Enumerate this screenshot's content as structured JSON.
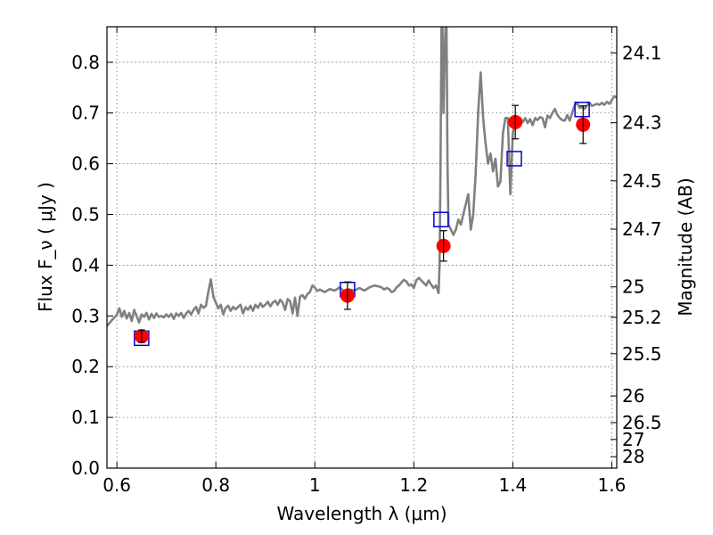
{
  "chart_data": {
    "type": "line",
    "xlabel": "Wavelength  λ (μm)",
    "ylabel": "Flux  F_ν  ( μJy )",
    "y2label": "Magnitude (AB)",
    "xlim": [
      0.58,
      1.61
    ],
    "ylim": [
      0.0,
      0.87
    ],
    "x_ticks": [
      0.6,
      0.8,
      1.0,
      1.2,
      1.4,
      1.6
    ],
    "x_tick_labels": [
      "0.6",
      "0.8",
      "1",
      "1.2",
      "1.4",
      "1.6"
    ],
    "y_ticks": [
      0.0,
      0.1,
      0.2,
      0.3,
      0.4,
      0.5,
      0.6,
      0.7,
      0.8
    ],
    "y_tick_labels": [
      "0.0",
      "0.1",
      "0.2",
      "0.3",
      "0.4",
      "0.5",
      "0.6",
      "0.7",
      "0.8"
    ],
    "y2_ticks": [
      {
        "label": "24.1",
        "flux": 0.8185
      },
      {
        "label": "24.3",
        "flux": 0.6808
      },
      {
        "label": "24.5",
        "flux": 0.5663
      },
      {
        "label": "24.7",
        "flux": 0.471
      },
      {
        "label": "25",
        "flux": 0.3573
      },
      {
        "label": "25.2",
        "flux": 0.2972
      },
      {
        "label": "25.5",
        "flux": 0.2254
      },
      {
        "label": "26",
        "flux": 0.1422
      },
      {
        "label": "26.5",
        "flux": 0.0897
      },
      {
        "label": "27",
        "flux": 0.0566
      },
      {
        "label": "28",
        "flux": 0.0225
      }
    ],
    "grid": true,
    "series": [
      {
        "kind": "spectrum",
        "color": "#808080",
        "points": [
          [
            0.58,
            0.28
          ],
          [
            0.59,
            0.292
          ],
          [
            0.6,
            0.302
          ],
          [
            0.605,
            0.315
          ],
          [
            0.61,
            0.298
          ],
          [
            0.615,
            0.31
          ],
          [
            0.62,
            0.295
          ],
          [
            0.625,
            0.306
          ],
          [
            0.63,
            0.29
          ],
          [
            0.635,
            0.312
          ],
          [
            0.64,
            0.3
          ],
          [
            0.645,
            0.287
          ],
          [
            0.65,
            0.303
          ],
          [
            0.655,
            0.298
          ],
          [
            0.66,
            0.306
          ],
          [
            0.665,
            0.293
          ],
          [
            0.67,
            0.304
          ],
          [
            0.675,
            0.296
          ],
          [
            0.68,
            0.305
          ],
          [
            0.685,
            0.298
          ],
          [
            0.69,
            0.3
          ],
          [
            0.695,
            0.297
          ],
          [
            0.7,
            0.303
          ],
          [
            0.705,
            0.298
          ],
          [
            0.71,
            0.304
          ],
          [
            0.715,
            0.294
          ],
          [
            0.72,
            0.305
          ],
          [
            0.725,
            0.3
          ],
          [
            0.73,
            0.306
          ],
          [
            0.735,
            0.296
          ],
          [
            0.74,
            0.305
          ],
          [
            0.745,
            0.31
          ],
          [
            0.75,
            0.303
          ],
          [
            0.755,
            0.312
          ],
          [
            0.76,
            0.318
          ],
          [
            0.765,
            0.305
          ],
          [
            0.77,
            0.322
          ],
          [
            0.775,
            0.316
          ],
          [
            0.78,
            0.32
          ],
          [
            0.785,
            0.348
          ],
          [
            0.79,
            0.372
          ],
          [
            0.795,
            0.338
          ],
          [
            0.8,
            0.326
          ],
          [
            0.805,
            0.315
          ],
          [
            0.81,
            0.322
          ],
          [
            0.815,
            0.303
          ],
          [
            0.82,
            0.316
          ],
          [
            0.825,
            0.32
          ],
          [
            0.83,
            0.31
          ],
          [
            0.835,
            0.318
          ],
          [
            0.84,
            0.313
          ],
          [
            0.845,
            0.318
          ],
          [
            0.85,
            0.322
          ],
          [
            0.855,
            0.305
          ],
          [
            0.86,
            0.317
          ],
          [
            0.865,
            0.312
          ],
          [
            0.87,
            0.32
          ],
          [
            0.875,
            0.31
          ],
          [
            0.88,
            0.322
          ],
          [
            0.885,
            0.316
          ],
          [
            0.89,
            0.325
          ],
          [
            0.895,
            0.318
          ],
          [
            0.9,
            0.322
          ],
          [
            0.905,
            0.328
          ],
          [
            0.91,
            0.319
          ],
          [
            0.915,
            0.326
          ],
          [
            0.92,
            0.33
          ],
          [
            0.925,
            0.322
          ],
          [
            0.93,
            0.332
          ],
          [
            0.935,
            0.326
          ],
          [
            0.94,
            0.312
          ],
          [
            0.945,
            0.333
          ],
          [
            0.95,
            0.329
          ],
          [
            0.955,
            0.305
          ],
          [
            0.96,
            0.336
          ],
          [
            0.965,
            0.3
          ],
          [
            0.97,
            0.338
          ],
          [
            0.975,
            0.341
          ],
          [
            0.98,
            0.334
          ],
          [
            0.985,
            0.343
          ],
          [
            0.99,
            0.347
          ],
          [
            0.995,
            0.36
          ],
          [
            1.0,
            0.356
          ],
          [
            1.005,
            0.349
          ],
          [
            1.01,
            0.352
          ],
          [
            1.02,
            0.347
          ],
          [
            1.03,
            0.353
          ],
          [
            1.04,
            0.35
          ],
          [
            1.05,
            0.356
          ],
          [
            1.06,
            0.348
          ],
          [
            1.07,
            0.352
          ],
          [
            1.08,
            0.35
          ],
          [
            1.09,
            0.355
          ],
          [
            1.1,
            0.35
          ],
          [
            1.11,
            0.356
          ],
          [
            1.12,
            0.36
          ],
          [
            1.13,
            0.358
          ],
          [
            1.135,
            0.356
          ],
          [
            1.14,
            0.352
          ],
          [
            1.145,
            0.355
          ],
          [
            1.15,
            0.353
          ],
          [
            1.155,
            0.347
          ],
          [
            1.16,
            0.349
          ],
          [
            1.165,
            0.356
          ],
          [
            1.17,
            0.36
          ],
          [
            1.175,
            0.366
          ],
          [
            1.18,
            0.371
          ],
          [
            1.185,
            0.368
          ],
          [
            1.19,
            0.36
          ],
          [
            1.195,
            0.362
          ],
          [
            1.2,
            0.355
          ],
          [
            1.205,
            0.37
          ],
          [
            1.21,
            0.375
          ],
          [
            1.215,
            0.37
          ],
          [
            1.22,
            0.365
          ],
          [
            1.225,
            0.36
          ],
          [
            1.23,
            0.37
          ],
          [
            1.235,
            0.362
          ],
          [
            1.24,
            0.355
          ],
          [
            1.245,
            0.36
          ],
          [
            1.25,
            0.345
          ],
          [
            1.252,
            0.4
          ],
          [
            1.254,
            0.6
          ],
          [
            1.256,
            0.87
          ],
          [
            1.258,
            0.87
          ],
          [
            1.26,
            0.7
          ],
          [
            1.262,
            0.8
          ],
          [
            1.264,
            0.87
          ],
          [
            1.266,
            0.87
          ],
          [
            1.268,
            0.6
          ],
          [
            1.27,
            0.48
          ],
          [
            1.275,
            0.47
          ],
          [
            1.28,
            0.46
          ],
          [
            1.285,
            0.47
          ],
          [
            1.29,
            0.49
          ],
          [
            1.295,
            0.48
          ],
          [
            1.3,
            0.5
          ],
          [
            1.305,
            0.52
          ],
          [
            1.31,
            0.54
          ],
          [
            1.315,
            0.47
          ],
          [
            1.32,
            0.5
          ],
          [
            1.325,
            0.58
          ],
          [
            1.33,
            0.7
          ],
          [
            1.335,
            0.78
          ],
          [
            1.34,
            0.69
          ],
          [
            1.345,
            0.64
          ],
          [
            1.35,
            0.6
          ],
          [
            1.355,
            0.62
          ],
          [
            1.36,
            0.585
          ],
          [
            1.365,
            0.61
          ],
          [
            1.37,
            0.555
          ],
          [
            1.375,
            0.565
          ],
          [
            1.38,
            0.66
          ],
          [
            1.385,
            0.69
          ],
          [
            1.39,
            0.69
          ],
          [
            1.395,
            0.54
          ],
          [
            1.4,
            0.66
          ],
          [
            1.405,
            0.69
          ],
          [
            1.41,
            0.68
          ],
          [
            1.415,
            0.69
          ],
          [
            1.42,
            0.682
          ],
          [
            1.425,
            0.69
          ],
          [
            1.43,
            0.68
          ],
          [
            1.435,
            0.688
          ],
          [
            1.44,
            0.676
          ],
          [
            1.445,
            0.69
          ],
          [
            1.45,
            0.686
          ],
          [
            1.455,
            0.692
          ],
          [
            1.46,
            0.69
          ],
          [
            1.465,
            0.672
          ],
          [
            1.47,
            0.695
          ],
          [
            1.475,
            0.69
          ],
          [
            1.48,
            0.7
          ],
          [
            1.485,
            0.708
          ],
          [
            1.49,
            0.696
          ],
          [
            1.495,
            0.69
          ],
          [
            1.5,
            0.686
          ],
          [
            1.505,
            0.685
          ],
          [
            1.51,
            0.696
          ],
          [
            1.515,
            0.685
          ],
          [
            1.52,
            0.7
          ],
          [
            1.525,
            0.715
          ],
          [
            1.53,
            0.72
          ],
          [
            1.535,
            0.71
          ],
          [
            1.54,
            0.712
          ],
          [
            1.545,
            0.708
          ],
          [
            1.55,
            0.715
          ],
          [
            1.555,
            0.72
          ],
          [
            1.56,
            0.714
          ],
          [
            1.565,
            0.716
          ],
          [
            1.57,
            0.718
          ],
          [
            1.575,
            0.716
          ],
          [
            1.58,
            0.72
          ],
          [
            1.585,
            0.716
          ],
          [
            1.59,
            0.722
          ],
          [
            1.595,
            0.718
          ],
          [
            1.6,
            0.725
          ],
          [
            1.605,
            0.733
          ],
          [
            1.61,
            0.73
          ]
        ]
      },
      {
        "kind": "model_photometry",
        "marker": "open-square",
        "color": "#0000dd",
        "points": [
          [
            0.65,
            0.256
          ],
          [
            1.066,
            0.352
          ],
          [
            1.255,
            0.49
          ],
          [
            1.403,
            0.61
          ],
          [
            1.54,
            0.707
          ]
        ]
      },
      {
        "kind": "observed_photometry",
        "marker": "filled-circle",
        "color": "#ff0000",
        "points": [
          {
            "x": 0.65,
            "y": 0.26,
            "err": 0.012
          },
          {
            "x": 1.066,
            "y": 0.34,
            "err": 0.027
          },
          {
            "x": 1.26,
            "y": 0.438,
            "err": 0.03
          },
          {
            "x": 1.405,
            "y": 0.682,
            "err": 0.033
          },
          {
            "x": 1.542,
            "y": 0.677,
            "err": 0.037
          }
        ]
      }
    ]
  }
}
